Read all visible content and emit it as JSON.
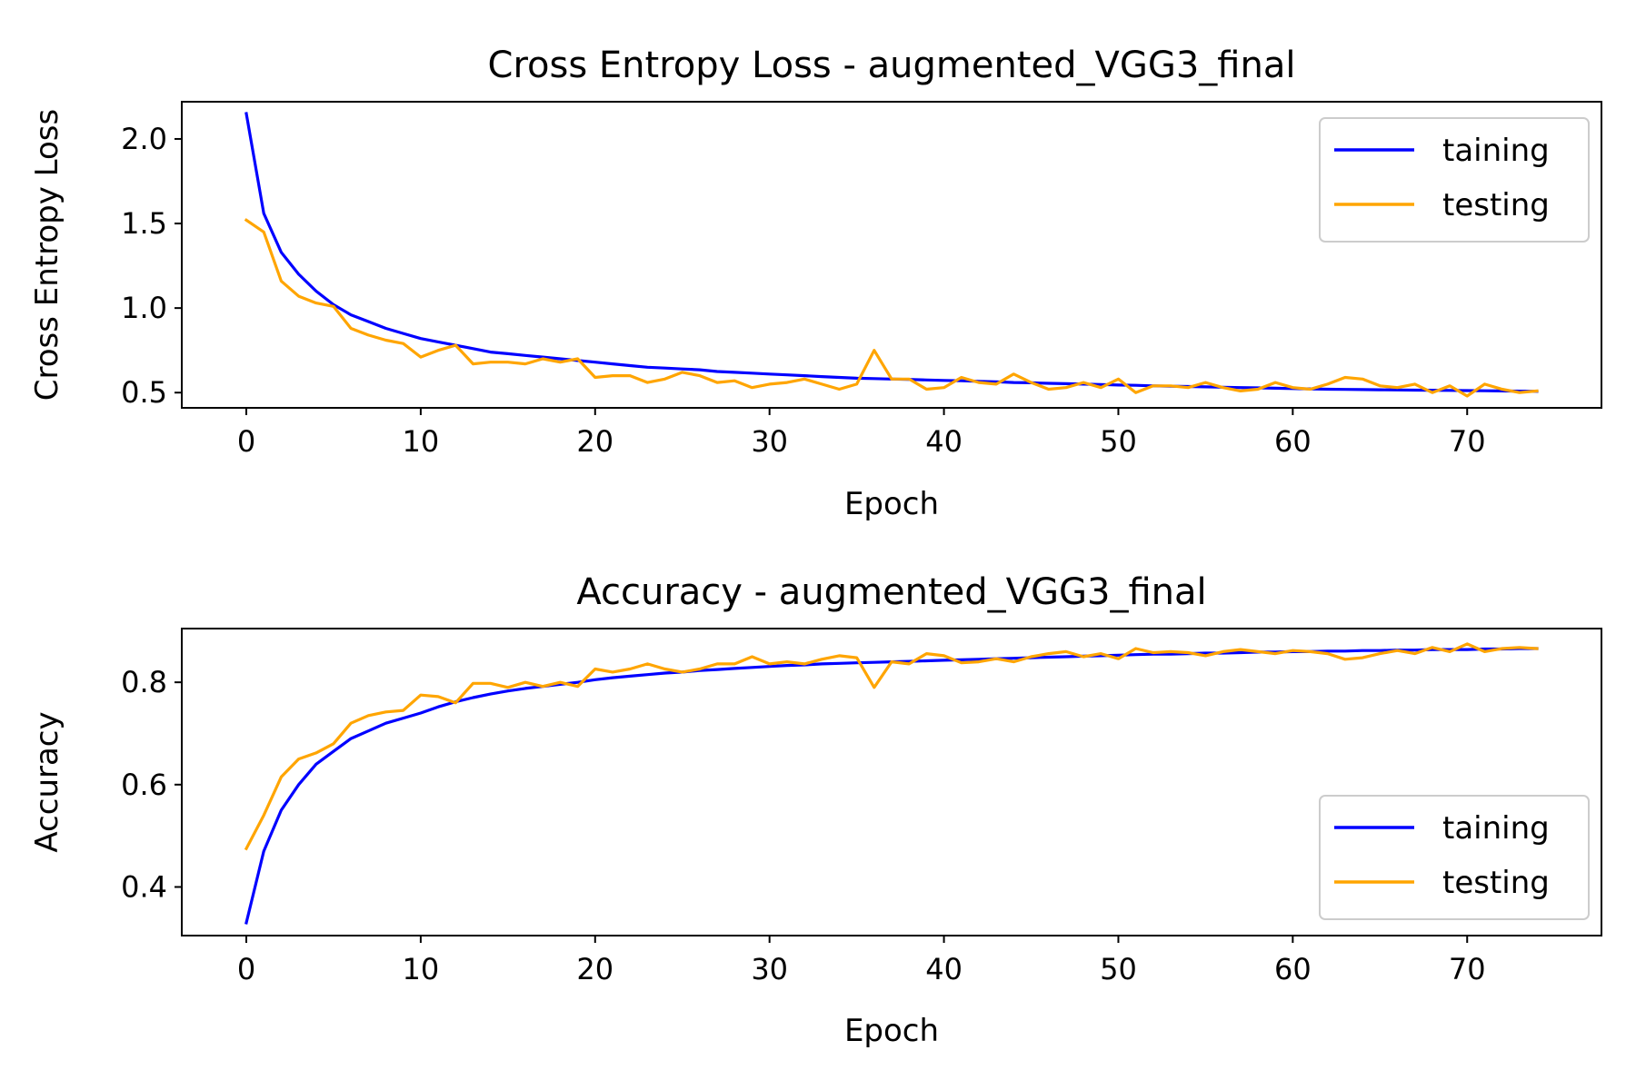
{
  "chart_data": [
    {
      "type": "line",
      "title": "Cross Entropy Loss - augmented_VGG3_final",
      "xlabel": "Epoch",
      "ylabel": "Cross Entropy Loss",
      "xlim": [
        -3.7,
        77.7
      ],
      "ylim": [
        0.41,
        2.22
      ],
      "xticks": [
        0,
        10,
        20,
        30,
        40,
        50,
        60,
        70
      ],
      "yticks": [
        0.5,
        1.0,
        1.5,
        2.0
      ],
      "ytick_labels": [
        "0.5",
        "1.0",
        "1.5",
        "2.0"
      ],
      "legend_position": "upper right",
      "grid": false,
      "series": [
        {
          "name": "taining",
          "color": "#0000ff",
          "x": [
            0,
            1,
            2,
            3,
            4,
            5,
            6,
            7,
            8,
            9,
            10,
            11,
            12,
            13,
            14,
            15,
            16,
            17,
            18,
            19,
            20,
            21,
            22,
            23,
            24,
            25,
            26,
            27,
            28,
            29,
            30,
            31,
            32,
            33,
            34,
            35,
            36,
            37,
            38,
            39,
            40,
            41,
            42,
            43,
            44,
            45,
            46,
            47,
            48,
            49,
            50,
            51,
            52,
            53,
            54,
            55,
            56,
            57,
            58,
            59,
            60,
            61,
            62,
            63,
            64,
            65,
            66,
            67,
            68,
            69,
            70,
            71,
            72,
            73,
            74
          ],
          "values": [
            2.15,
            1.56,
            1.33,
            1.2,
            1.1,
            1.02,
            0.96,
            0.92,
            0.88,
            0.85,
            0.82,
            0.8,
            0.78,
            0.76,
            0.74,
            0.73,
            0.72,
            0.71,
            0.7,
            0.69,
            0.68,
            0.67,
            0.66,
            0.65,
            0.645,
            0.64,
            0.635,
            0.625,
            0.62,
            0.615,
            0.61,
            0.605,
            0.6,
            0.595,
            0.59,
            0.585,
            0.583,
            0.58,
            0.578,
            0.575,
            0.572,
            0.57,
            0.567,
            0.564,
            0.56,
            0.558,
            0.555,
            0.553,
            0.55,
            0.548,
            0.545,
            0.543,
            0.54,
            0.538,
            0.536,
            0.534,
            0.532,
            0.53,
            0.528,
            0.526,
            0.524,
            0.522,
            0.52,
            0.519,
            0.518,
            0.517,
            0.516,
            0.515,
            0.514,
            0.513,
            0.512,
            0.511,
            0.51,
            0.509,
            0.508
          ]
        },
        {
          "name": "testing",
          "color": "#ffa500",
          "x": [
            0,
            1,
            2,
            3,
            4,
            5,
            6,
            7,
            8,
            9,
            10,
            11,
            12,
            13,
            14,
            15,
            16,
            17,
            18,
            19,
            20,
            21,
            22,
            23,
            24,
            25,
            26,
            27,
            28,
            29,
            30,
            31,
            32,
            33,
            34,
            35,
            36,
            37,
            38,
            39,
            40,
            41,
            42,
            43,
            44,
            45,
            46,
            47,
            48,
            49,
            50,
            51,
            52,
            53,
            54,
            55,
            56,
            57,
            58,
            59,
            60,
            61,
            62,
            63,
            64,
            65,
            66,
            67,
            68,
            69,
            70,
            71,
            72,
            73,
            74
          ],
          "values": [
            1.52,
            1.45,
            1.16,
            1.07,
            1.03,
            1.01,
            0.88,
            0.84,
            0.81,
            0.79,
            0.71,
            0.75,
            0.78,
            0.67,
            0.68,
            0.68,
            0.67,
            0.7,
            0.68,
            0.7,
            0.59,
            0.6,
            0.6,
            0.56,
            0.58,
            0.62,
            0.6,
            0.56,
            0.57,
            0.53,
            0.55,
            0.56,
            0.58,
            0.55,
            0.52,
            0.55,
            0.75,
            0.58,
            0.58,
            0.52,
            0.53,
            0.59,
            0.56,
            0.55,
            0.61,
            0.56,
            0.52,
            0.53,
            0.56,
            0.53,
            0.58,
            0.5,
            0.54,
            0.54,
            0.53,
            0.56,
            0.53,
            0.51,
            0.52,
            0.56,
            0.53,
            0.52,
            0.55,
            0.59,
            0.58,
            0.54,
            0.53,
            0.55,
            0.5,
            0.54,
            0.48,
            0.55,
            0.52,
            0.5,
            0.51
          ]
        }
      ]
    },
    {
      "type": "line",
      "title": "Accuracy - augmented_VGG3_final",
      "xlabel": "Epoch",
      "ylabel": "Accuracy",
      "xlim": [
        -3.7,
        77.7
      ],
      "ylim": [
        0.305,
        0.905
      ],
      "xticks": [
        0,
        10,
        20,
        30,
        40,
        50,
        60,
        70
      ],
      "yticks": [
        0.4,
        0.6,
        0.8
      ],
      "ytick_labels": [
        "0.4",
        "0.6",
        "0.8"
      ],
      "legend_position": "lower right",
      "grid": false,
      "series": [
        {
          "name": "taining",
          "color": "#0000ff",
          "x": [
            0,
            1,
            2,
            3,
            4,
            5,
            6,
            7,
            8,
            9,
            10,
            11,
            12,
            13,
            14,
            15,
            16,
            17,
            18,
            19,
            20,
            21,
            22,
            23,
            24,
            25,
            26,
            27,
            28,
            29,
            30,
            31,
            32,
            33,
            34,
            35,
            36,
            37,
            38,
            39,
            40,
            41,
            42,
            43,
            44,
            45,
            46,
            47,
            48,
            49,
            50,
            51,
            52,
            53,
            54,
            55,
            56,
            57,
            58,
            59,
            60,
            61,
            62,
            63,
            64,
            65,
            66,
            67,
            68,
            69,
            70,
            71,
            72,
            73,
            74
          ],
          "values": [
            0.33,
            0.47,
            0.55,
            0.6,
            0.64,
            0.665,
            0.69,
            0.705,
            0.72,
            0.73,
            0.74,
            0.752,
            0.762,
            0.77,
            0.777,
            0.783,
            0.788,
            0.792,
            0.796,
            0.8,
            0.805,
            0.809,
            0.812,
            0.815,
            0.818,
            0.82,
            0.823,
            0.825,
            0.827,
            0.829,
            0.831,
            0.833,
            0.834,
            0.836,
            0.837,
            0.838,
            0.839,
            0.84,
            0.841,
            0.842,
            0.843,
            0.844,
            0.845,
            0.846,
            0.847,
            0.848,
            0.849,
            0.85,
            0.851,
            0.852,
            0.853,
            0.854,
            0.855,
            0.855,
            0.856,
            0.857,
            0.857,
            0.858,
            0.859,
            0.859,
            0.86,
            0.86,
            0.861,
            0.861,
            0.862,
            0.862,
            0.863,
            0.863,
            0.864,
            0.864,
            0.864,
            0.865,
            0.865,
            0.866,
            0.866
          ]
        },
        {
          "name": "testing",
          "color": "#ffa500",
          "x": [
            0,
            1,
            2,
            3,
            4,
            5,
            6,
            7,
            8,
            9,
            10,
            11,
            12,
            13,
            14,
            15,
            16,
            17,
            18,
            19,
            20,
            21,
            22,
            23,
            24,
            25,
            26,
            27,
            28,
            29,
            30,
            31,
            32,
            33,
            34,
            35,
            36,
            37,
            38,
            39,
            40,
            41,
            42,
            43,
            44,
            45,
            46,
            47,
            48,
            49,
            50,
            51,
            52,
            53,
            54,
            55,
            56,
            57,
            58,
            59,
            60,
            61,
            62,
            63,
            64,
            65,
            66,
            67,
            68,
            69,
            70,
            71,
            72,
            73,
            74
          ],
          "values": [
            0.475,
            0.54,
            0.615,
            0.65,
            0.662,
            0.68,
            0.72,
            0.735,
            0.742,
            0.745,
            0.775,
            0.772,
            0.76,
            0.798,
            0.798,
            0.79,
            0.8,
            0.792,
            0.8,
            0.792,
            0.826,
            0.82,
            0.826,
            0.836,
            0.826,
            0.82,
            0.826,
            0.836,
            0.836,
            0.85,
            0.836,
            0.84,
            0.836,
            0.845,
            0.852,
            0.848,
            0.79,
            0.84,
            0.836,
            0.856,
            0.852,
            0.838,
            0.84,
            0.846,
            0.84,
            0.85,
            0.856,
            0.86,
            0.85,
            0.856,
            0.846,
            0.866,
            0.858,
            0.86,
            0.858,
            0.852,
            0.86,
            0.864,
            0.86,
            0.856,
            0.862,
            0.86,
            0.856,
            0.845,
            0.848,
            0.856,
            0.862,
            0.856,
            0.868,
            0.86,
            0.875,
            0.86,
            0.866,
            0.868,
            0.866
          ]
        }
      ]
    }
  ]
}
